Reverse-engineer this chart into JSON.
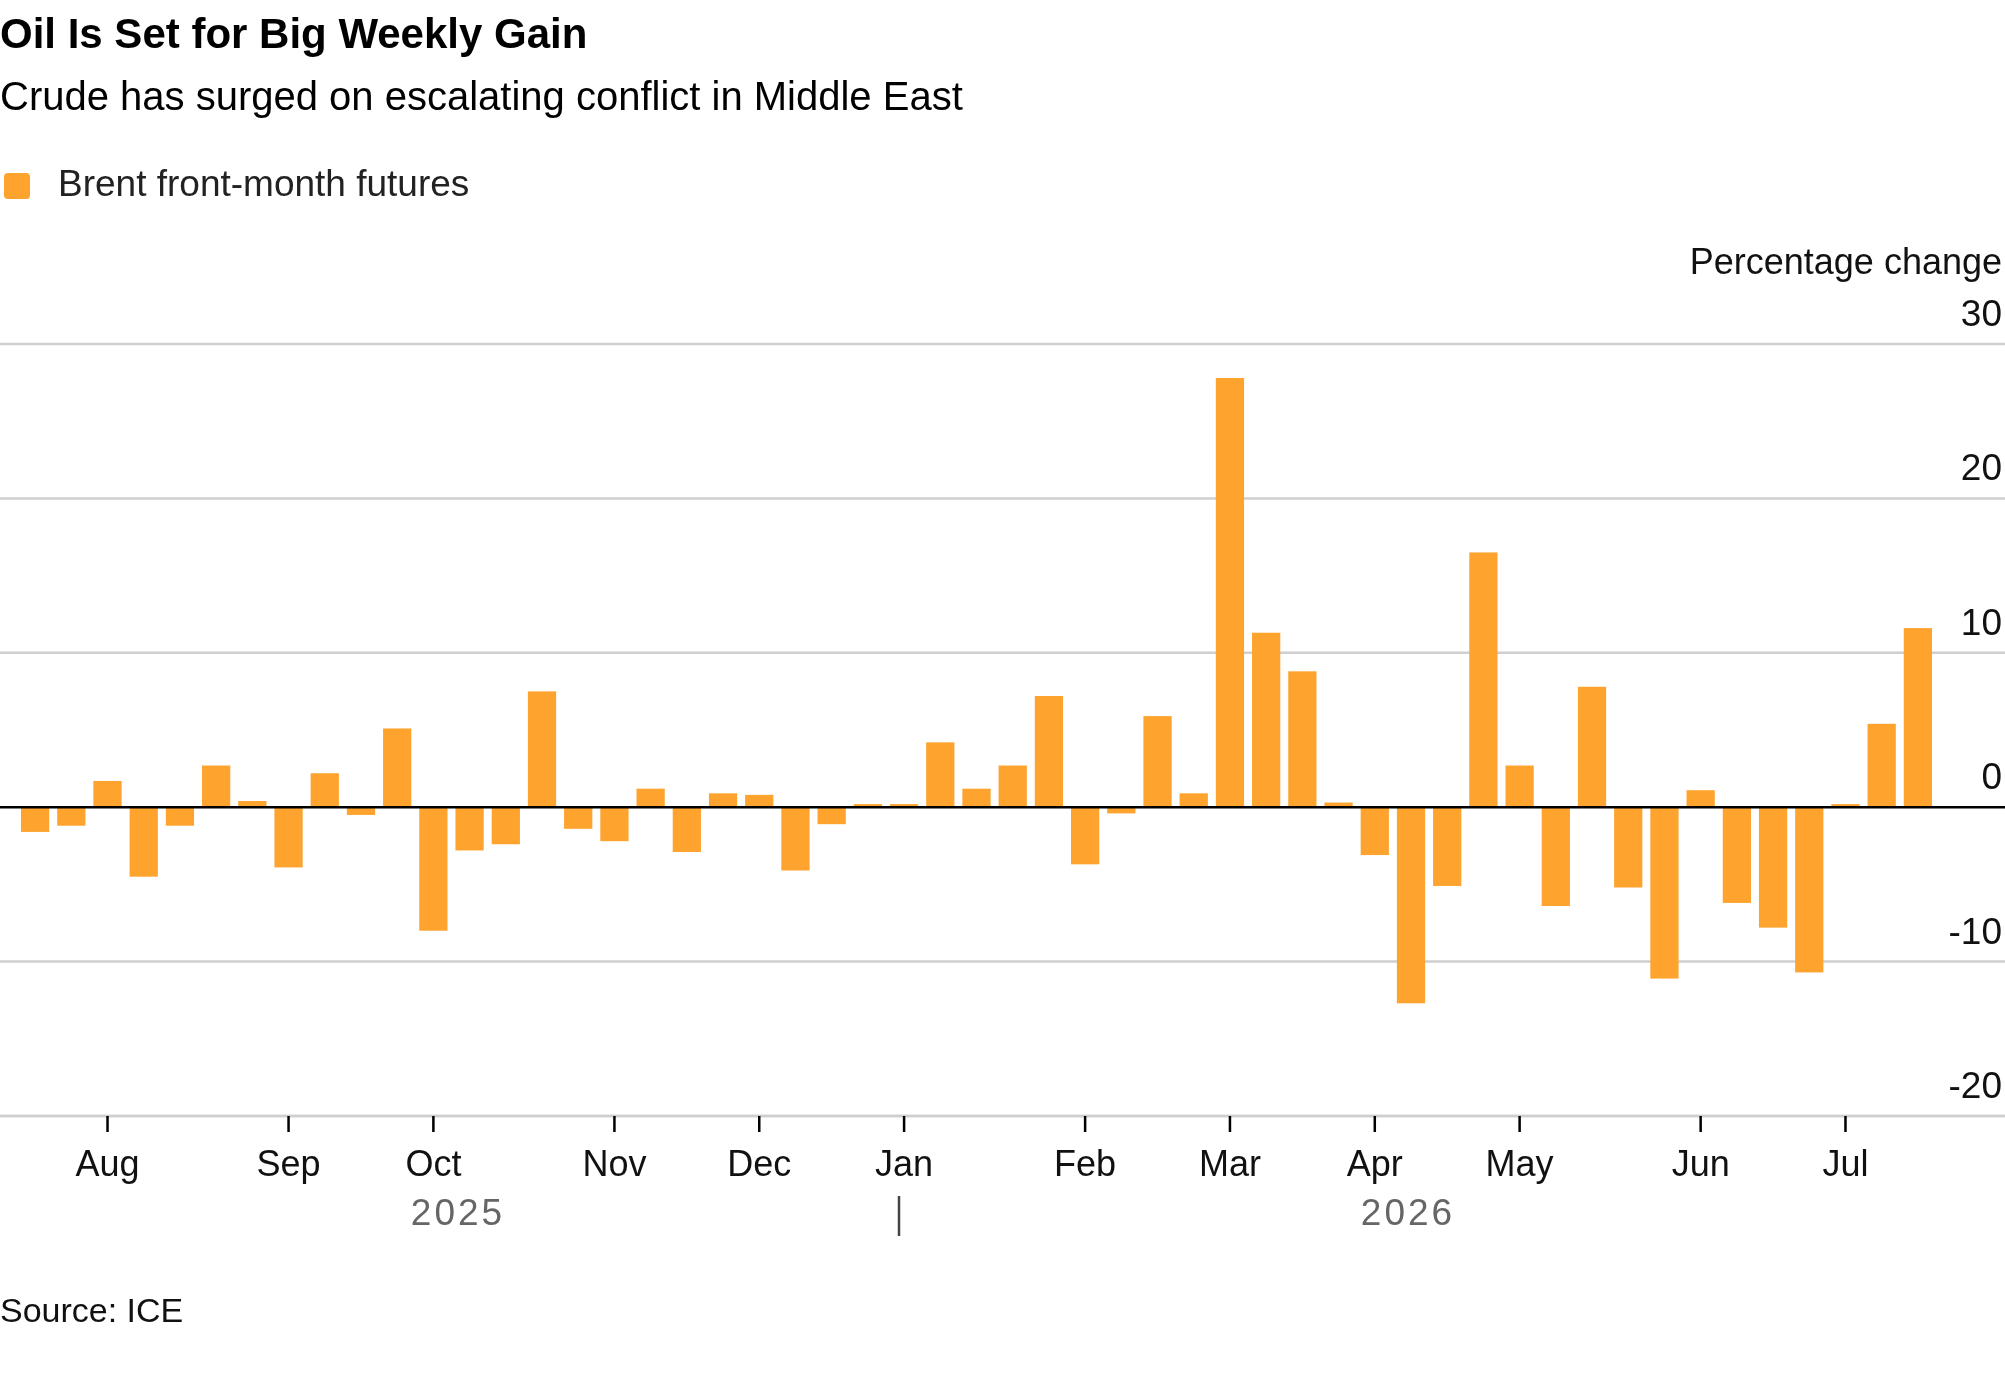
{
  "chart_data": {
    "type": "bar",
    "title": "Oil Is Set for Big Weekly Gain",
    "subtitle": "Crude has surged on escalating conflict in Middle East",
    "ylabel": "Percentage change",
    "categories": [
      null,
      null,
      "Aug",
      null,
      null,
      null,
      null,
      "Sep",
      null,
      null,
      null,
      "Oct",
      null,
      null,
      null,
      null,
      "Nov",
      null,
      null,
      null,
      "Dec",
      null,
      null,
      null,
      "Jan",
      null,
      null,
      null,
      null,
      "Feb",
      null,
      null,
      null,
      "Mar",
      null,
      null,
      null,
      "Apr",
      null,
      null,
      null,
      "May",
      null,
      null,
      null,
      null,
      "Jun",
      null,
      null,
      null,
      "Jul",
      null,
      null
    ],
    "series": [
      {
        "name": "Brent front-month futures",
        "color": "#fda32e",
        "values": [
          -1.6,
          -1.2,
          1.7,
          -4.5,
          -1.2,
          2.7,
          0.4,
          -3.9,
          2.2,
          -0.5,
          5.1,
          -8.0,
          -2.8,
          -2.4,
          7.5,
          -1.4,
          -2.2,
          1.2,
          -2.9,
          0.9,
          0.8,
          -4.1,
          -1.1,
          0.2,
          0.2,
          4.2,
          1.2,
          2.7,
          7.2,
          -3.7,
          -0.4,
          5.9,
          0.9,
          27.8,
          11.3,
          8.8,
          0.3,
          -3.1,
          -12.7,
          -5.1,
          16.5,
          2.7,
          -6.4,
          7.8,
          -5.2,
          -11.1,
          1.1,
          -6.2,
          -7.8,
          -10.7,
          0.2,
          5.4,
          11.6
        ]
      }
    ],
    "ylim": [
      -20,
      30
    ],
    "yticks": [
      -20,
      -10,
      0,
      10,
      20,
      30
    ],
    "grid": "y",
    "legend": "top left",
    "annotations": [
      "2025",
      "2026",
      "Source: ICE"
    ]
  }
}
